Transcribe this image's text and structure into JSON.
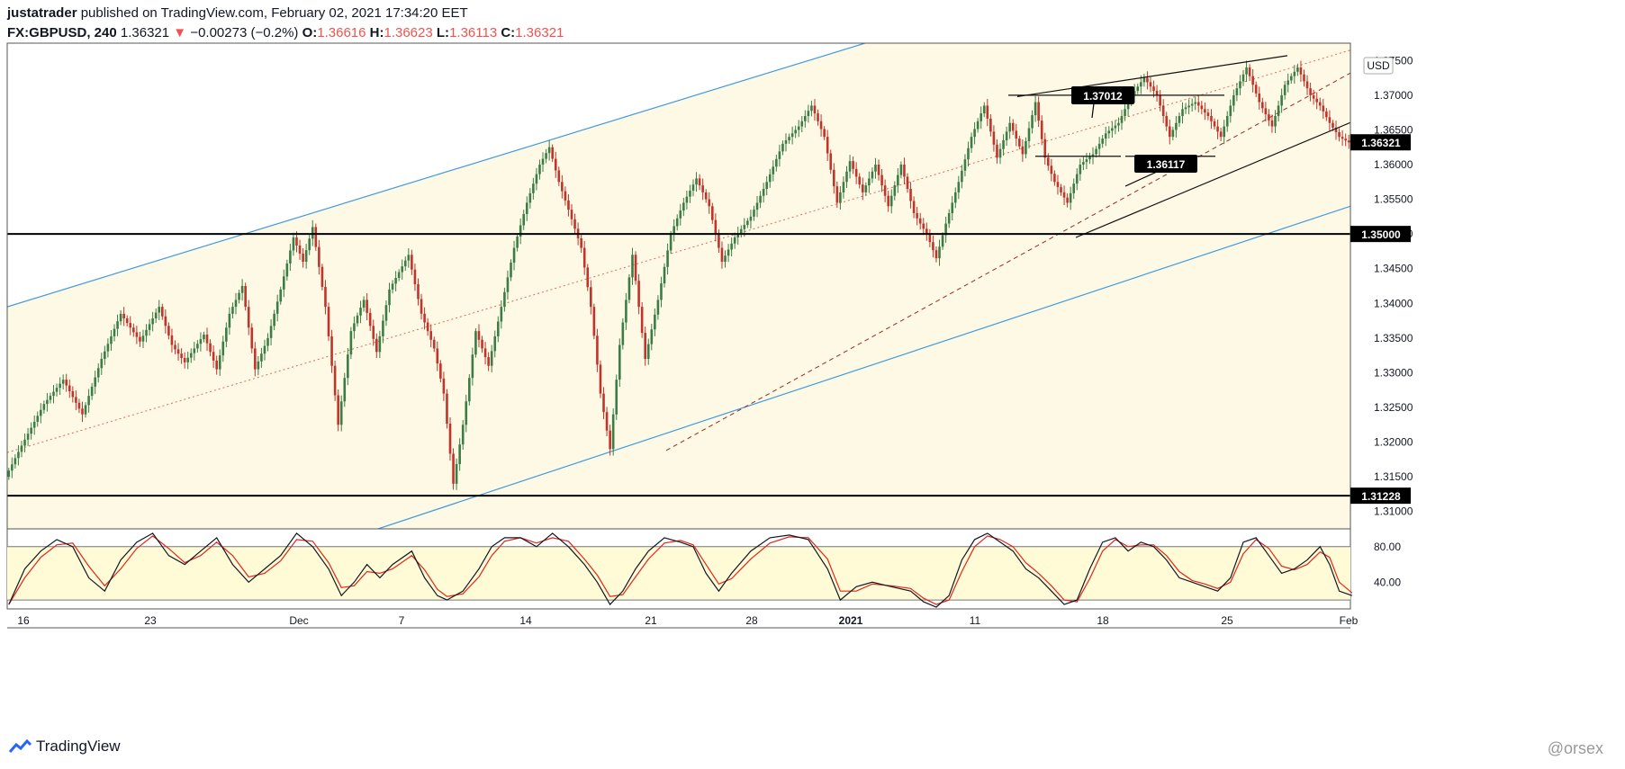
{
  "header": {
    "author": "justatrader",
    "published": "published on TradingView.com, February 02, 2021 17:34:20 EET",
    "symbol": "FX:GBPUSD, 240",
    "last": "1.36321",
    "arrow": "▼",
    "change": "−0.00273 (−0.2%)",
    "o_label": "O:",
    "o": "1.36616",
    "h_label": "H:",
    "h": "1.36623",
    "l_label": "L:",
    "l": "1.36113",
    "c_label": "C:",
    "c": "1.36321"
  },
  "footer": {
    "brand": "TradingView",
    "watermark": "@orsex"
  },
  "colors": {
    "up": "#3b7d46",
    "down": "#c0342c",
    "channel_fill": "#fdf9e4",
    "channel_line": "#3f9ae0",
    "stoch_k": "#131722",
    "stoch_d": "#e3261c",
    "stoch_band": "#fffbd6"
  },
  "chart_data": [
    {
      "type": "candlestick",
      "currency": "USD",
      "ylim": [
        1.3075,
        1.3775
      ],
      "y_ticks": [
        "1.37500",
        "1.37000",
        "1.36500",
        "1.36000",
        "1.35500",
        "1.35000",
        "1.34500",
        "1.34000",
        "1.33500",
        "1.33000",
        "1.32500",
        "1.32000",
        "1.31500",
        "1.31000"
      ],
      "x_ticks": [
        {
          "label": "16",
          "bold": false
        },
        {
          "label": "23",
          "bold": false
        },
        {
          "label": "Dec",
          "bold": false
        },
        {
          "label": "7",
          "bold": false
        },
        {
          "label": "14",
          "bold": false
        },
        {
          "label": "21",
          "bold": false
        },
        {
          "label": "28",
          "bold": false
        },
        {
          "label": "2021",
          "bold": true
        },
        {
          "label": "11",
          "bold": false
        },
        {
          "label": "18",
          "bold": false
        },
        {
          "label": "25",
          "bold": false
        },
        {
          "label": "Feb",
          "bold": false
        }
      ],
      "price_path": [
        [
          0,
          1.315
        ],
        [
          5,
          1.3195
        ],
        [
          12,
          1.3255
        ],
        [
          18,
          1.329
        ],
        [
          24,
          1.324
        ],
        [
          30,
          1.332
        ],
        [
          36,
          1.3385
        ],
        [
          42,
          1.3345
        ],
        [
          48,
          1.3395
        ],
        [
          52,
          1.334
        ],
        [
          56,
          1.3315
        ],
        [
          62,
          1.3355
        ],
        [
          66,
          1.3305
        ],
        [
          70,
          1.3385
        ],
        [
          74,
          1.3425
        ],
        [
          78,
          1.3305
        ],
        [
          82,
          1.335
        ],
        [
          86,
          1.342
        ],
        [
          90,
          1.3495
        ],
        [
          93,
          1.346
        ],
        [
          96,
          1.351
        ],
        [
          100,
          1.3395
        ],
        [
          104,
          1.3225
        ],
        [
          108,
          1.336
        ],
        [
          112,
          1.3405
        ],
        [
          116,
          1.333
        ],
        [
          120,
          1.342
        ],
        [
          126,
          1.347
        ],
        [
          130,
          1.3385
        ],
        [
          134,
          1.3335
        ],
        [
          137,
          1.327
        ],
        [
          140,
          1.314
        ],
        [
          143,
          1.3225
        ],
        [
          147,
          1.336
        ],
        [
          151,
          1.331
        ],
        [
          155,
          1.3395
        ],
        [
          159,
          1.348
        ],
        [
          163,
          1.3545
        ],
        [
          167,
          1.36
        ],
        [
          170,
          1.3625
        ],
        [
          173,
          1.3575
        ],
        [
          176,
          1.3535
        ],
        [
          180,
          1.348
        ],
        [
          183,
          1.3395
        ],
        [
          186,
          1.327
        ],
        [
          189,
          1.319
        ],
        [
          192,
          1.334
        ],
        [
          196,
          1.347
        ],
        [
          200,
          1.332
        ],
        [
          204,
          1.3405
        ],
        [
          208,
          1.35
        ],
        [
          212,
          1.3545
        ],
        [
          216,
          1.358
        ],
        [
          220,
          1.354
        ],
        [
          224,
          1.346
        ],
        [
          228,
          1.3495
        ],
        [
          233,
          1.3525
        ],
        [
          238,
          1.3575
        ],
        [
          243,
          1.363
        ],
        [
          248,
          1.3655
        ],
        [
          252,
          1.3685
        ],
        [
          256,
          1.364
        ],
        [
          260,
          1.3545
        ],
        [
          264,
          1.3605
        ],
        [
          268,
          1.356
        ],
        [
          272,
          1.36
        ],
        [
          276,
          1.354
        ],
        [
          280,
          1.36
        ],
        [
          284,
          1.353
        ],
        [
          288,
          1.35
        ],
        [
          291,
          1.3465
        ],
        [
          294,
          1.3515
        ],
        [
          298,
          1.3575
        ],
        [
          302,
          1.364
        ],
        [
          306,
          1.3685
        ],
        [
          310,
          1.361
        ],
        [
          314,
          1.366
        ],
        [
          318,
          1.3615
        ],
        [
          322,
          1.369
        ],
        [
          325,
          1.361
        ],
        [
          328,
          1.3575
        ],
        [
          332,
          1.3545
        ],
        [
          336,
          1.36
        ],
        [
          340,
          1.3615
        ],
        [
          344,
          1.3645
        ],
        [
          348,
          1.366
        ],
        [
          352,
          1.37
        ],
        [
          356,
          1.3725
        ],
        [
          360,
          1.37
        ],
        [
          364,
          1.364
        ],
        [
          368,
          1.368
        ],
        [
          372,
          1.369
        ],
        [
          376,
          1.367
        ],
        [
          380,
          1.364
        ],
        [
          384,
          1.37
        ],
        [
          388,
          1.374
        ],
        [
          392,
          1.369
        ],
        [
          396,
          1.3655
        ],
        [
          400,
          1.3715
        ],
        [
          404,
          1.374
        ],
        [
          408,
          1.37
        ],
        [
          411,
          1.3685
        ],
        [
          414,
          1.366
        ],
        [
          417,
          1.364
        ],
        [
          420,
          1.3632
        ]
      ],
      "horizontal_levels": [
        {
          "price": 1.35,
          "label": "1.35000"
        },
        {
          "price": 1.31228,
          "label": "1.31228"
        }
      ],
      "last_price": {
        "price": 1.36321,
        "label": "1.36321"
      },
      "callouts": [
        {
          "price": 1.37012,
          "label": "1.37012"
        },
        {
          "price": 1.36117,
          "label": "1.36117"
        }
      ]
    },
    {
      "type": "line",
      "name": "stochastic",
      "ylim": [
        10,
        100
      ],
      "y_ticks": [
        "80.00",
        "40.00"
      ],
      "band": [
        20,
        80
      ],
      "k_path": [
        [
          0,
          15
        ],
        [
          5,
          55
        ],
        [
          10,
          75
        ],
        [
          15,
          88
        ],
        [
          20,
          80
        ],
        [
          25,
          45
        ],
        [
          30,
          30
        ],
        [
          35,
          65
        ],
        [
          40,
          85
        ],
        [
          45,
          95
        ],
        [
          50,
          70
        ],
        [
          55,
          60
        ],
        [
          60,
          75
        ],
        [
          65,
          90
        ],
        [
          70,
          60
        ],
        [
          75,
          40
        ],
        [
          80,
          55
        ],
        [
          85,
          70
        ],
        [
          90,
          95
        ],
        [
          95,
          80
        ],
        [
          100,
          55
        ],
        [
          104,
          25
        ],
        [
          108,
          40
        ],
        [
          112,
          60
        ],
        [
          116,
          45
        ],
        [
          120,
          60
        ],
        [
          126,
          75
        ],
        [
          130,
          45
        ],
        [
          134,
          25
        ],
        [
          137,
          20
        ],
        [
          142,
          30
        ],
        [
          147,
          55
        ],
        [
          151,
          80
        ],
        [
          155,
          90
        ],
        [
          160,
          90
        ],
        [
          165,
          80
        ],
        [
          170,
          95
        ],
        [
          175,
          80
        ],
        [
          180,
          60
        ],
        [
          184,
          40
        ],
        [
          188,
          15
        ],
        [
          192,
          30
        ],
        [
          196,
          55
        ],
        [
          200,
          75
        ],
        [
          205,
          90
        ],
        [
          210,
          85
        ],
        [
          214,
          80
        ],
        [
          218,
          50
        ],
        [
          222,
          30
        ],
        [
          226,
          50
        ],
        [
          232,
          75
        ],
        [
          238,
          90
        ],
        [
          244,
          93
        ],
        [
          250,
          88
        ],
        [
          256,
          55
        ],
        [
          260,
          20
        ],
        [
          265,
          35
        ],
        [
          270,
          40
        ],
        [
          276,
          35
        ],
        [
          282,
          30
        ],
        [
          286,
          18
        ],
        [
          290,
          12
        ],
        [
          294,
          25
        ],
        [
          298,
          65
        ],
        [
          302,
          88
        ],
        [
          306,
          95
        ],
        [
          310,
          85
        ],
        [
          314,
          75
        ],
        [
          318,
          55
        ],
        [
          322,
          45
        ],
        [
          326,
          30
        ],
        [
          330,
          15
        ],
        [
          334,
          20
        ],
        [
          338,
          55
        ],
        [
          342,
          85
        ],
        [
          346,
          90
        ],
        [
          350,
          75
        ],
        [
          354,
          85
        ],
        [
          358,
          80
        ],
        [
          362,
          65
        ],
        [
          366,
          45
        ],
        [
          370,
          40
        ],
        [
          374,
          35
        ],
        [
          378,
          30
        ],
        [
          382,
          45
        ],
        [
          386,
          85
        ],
        [
          390,
          90
        ],
        [
          394,
          70
        ],
        [
          398,
          50
        ],
        [
          402,
          55
        ],
        [
          406,
          65
        ],
        [
          410,
          80
        ],
        [
          413,
          60
        ],
        [
          416,
          30
        ],
        [
          420,
          25
        ]
      ],
      "d_path": [
        [
          0,
          15
        ],
        [
          5,
          45
        ],
        [
          10,
          68
        ],
        [
          15,
          82
        ],
        [
          20,
          84
        ],
        [
          25,
          58
        ],
        [
          30,
          36
        ],
        [
          35,
          55
        ],
        [
          40,
          78
        ],
        [
          45,
          92
        ],
        [
          50,
          78
        ],
        [
          55,
          62
        ],
        [
          60,
          70
        ],
        [
          65,
          85
        ],
        [
          70,
          70
        ],
        [
          75,
          46
        ],
        [
          80,
          50
        ],
        [
          85,
          64
        ],
        [
          90,
          88
        ],
        [
          95,
          86
        ],
        [
          100,
          62
        ],
        [
          104,
          34
        ],
        [
          108,
          36
        ],
        [
          112,
          52
        ],
        [
          116,
          50
        ],
        [
          120,
          55
        ],
        [
          126,
          70
        ],
        [
          130,
          54
        ],
        [
          134,
          32
        ],
        [
          137,
          24
        ],
        [
          142,
          27
        ],
        [
          147,
          46
        ],
        [
          151,
          70
        ],
        [
          155,
          86
        ],
        [
          160,
          90
        ],
        [
          165,
          84
        ],
        [
          170,
          90
        ],
        [
          175,
          86
        ],
        [
          180,
          66
        ],
        [
          184,
          48
        ],
        [
          188,
          24
        ],
        [
          192,
          26
        ],
        [
          196,
          46
        ],
        [
          200,
          66
        ],
        [
          205,
          84
        ],
        [
          210,
          87
        ],
        [
          214,
          82
        ],
        [
          218,
          60
        ],
        [
          222,
          38
        ],
        [
          226,
          44
        ],
        [
          232,
          66
        ],
        [
          238,
          84
        ],
        [
          244,
          91
        ],
        [
          250,
          90
        ],
        [
          256,
          66
        ],
        [
          260,
          30
        ],
        [
          265,
          30
        ],
        [
          270,
          38
        ],
        [
          276,
          36
        ],
        [
          282,
          33
        ],
        [
          286,
          22
        ],
        [
          290,
          15
        ],
        [
          294,
          20
        ],
        [
          298,
          52
        ],
        [
          302,
          80
        ],
        [
          306,
          92
        ],
        [
          310,
          88
        ],
        [
          314,
          80
        ],
        [
          318,
          62
        ],
        [
          322,
          50
        ],
        [
          326,
          36
        ],
        [
          330,
          20
        ],
        [
          334,
          18
        ],
        [
          338,
          44
        ],
        [
          342,
          75
        ],
        [
          346,
          88
        ],
        [
          350,
          80
        ],
        [
          354,
          82
        ],
        [
          358,
          82
        ],
        [
          362,
          70
        ],
        [
          366,
          52
        ],
        [
          370,
          42
        ],
        [
          374,
          38
        ],
        [
          378,
          33
        ],
        [
          382,
          40
        ],
        [
          386,
          72
        ],
        [
          390,
          88
        ],
        [
          394,
          78
        ],
        [
          398,
          58
        ],
        [
          402,
          54
        ],
        [
          406,
          60
        ],
        [
          410,
          74
        ],
        [
          413,
          68
        ],
        [
          416,
          40
        ],
        [
          420,
          28
        ]
      ]
    }
  ]
}
